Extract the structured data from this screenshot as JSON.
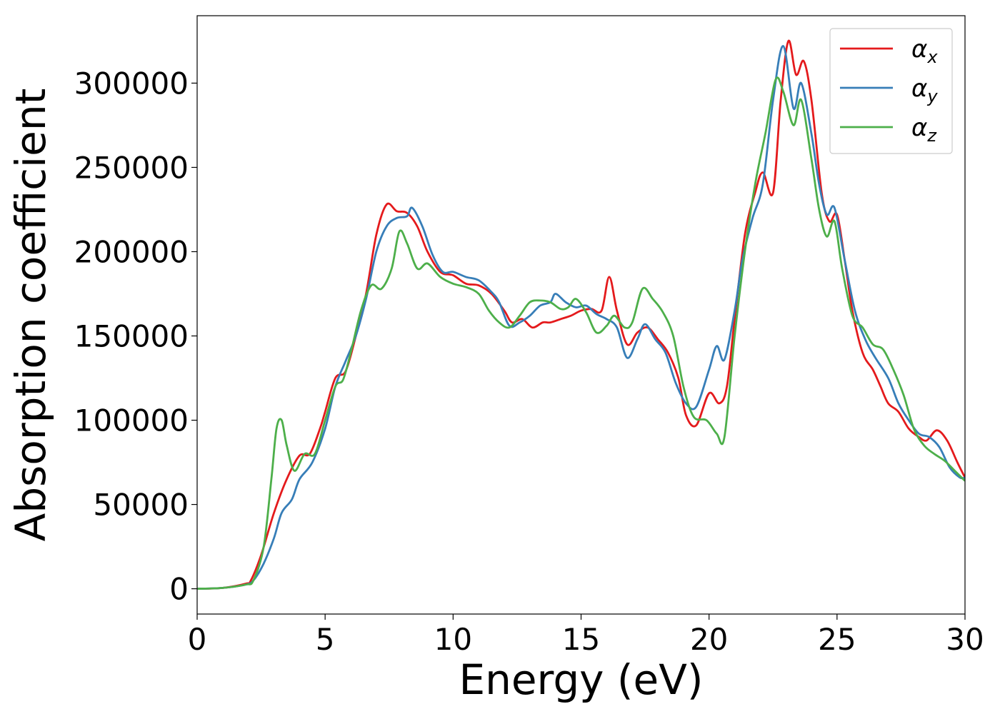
{
  "chart_data": {
    "type": "line",
    "title": "",
    "xlabel": "Energy (eV)",
    "ylabel": "Absorption coefficient",
    "xlim": [
      0,
      30
    ],
    "ylim": [
      -15000,
      340000
    ],
    "xticks": [
      0,
      5,
      10,
      15,
      20,
      25,
      30
    ],
    "yticks": [
      0,
      50000,
      100000,
      150000,
      200000,
      250000,
      300000
    ],
    "xtick_labels": [
      "0",
      "5",
      "10",
      "15",
      "20",
      "25",
      "30"
    ],
    "ytick_labels": [
      "0",
      "50000",
      "100000",
      "150000",
      "200000",
      "250000",
      "300000"
    ],
    "grid": false,
    "legend_position": "top-right",
    "series": [
      {
        "name": "α_x",
        "legend_base": "α",
        "legend_sub": "x",
        "color": "#e41a1c",
        "points": [
          [
            0,
            0
          ],
          [
            1,
            500
          ],
          [
            1.9,
            3000
          ],
          [
            2.1,
            5000
          ],
          [
            2.5,
            20000
          ],
          [
            3,
            45000
          ],
          [
            3.5,
            65000
          ],
          [
            4,
            79000
          ],
          [
            4.4,
            80000
          ],
          [
            4.8,
            95000
          ],
          [
            5,
            105000
          ],
          [
            5.4,
            125000
          ],
          [
            5.8,
            129000
          ],
          [
            6.2,
            150000
          ],
          [
            6.6,
            175000
          ],
          [
            7,
            210000
          ],
          [
            7.4,
            228000
          ],
          [
            7.8,
            224000
          ],
          [
            8.2,
            223000
          ],
          [
            8.6,
            215000
          ],
          [
            9,
            200000
          ],
          [
            9.5,
            188000
          ],
          [
            10,
            186000
          ],
          [
            10.5,
            181000
          ],
          [
            11,
            180000
          ],
          [
            11.5,
            175000
          ],
          [
            12,
            165000
          ],
          [
            12.3,
            158000
          ],
          [
            12.7,
            160000
          ],
          [
            13.1,
            155000
          ],
          [
            13.5,
            158000
          ],
          [
            13.8,
            158000
          ],
          [
            14.2,
            160000
          ],
          [
            14.6,
            162000
          ],
          [
            15,
            165000
          ],
          [
            15.4,
            166000
          ],
          [
            15.8,
            165000
          ],
          [
            16.1,
            185000
          ],
          [
            16.4,
            165000
          ],
          [
            16.8,
            145000
          ],
          [
            17.2,
            152000
          ],
          [
            17.6,
            155000
          ],
          [
            18,
            148000
          ],
          [
            18.4,
            140000
          ],
          [
            18.8,
            125000
          ],
          [
            19.1,
            103000
          ],
          [
            19.5,
            97000
          ],
          [
            20,
            116000
          ],
          [
            20.4,
            110000
          ],
          [
            20.7,
            120000
          ],
          [
            21,
            160000
          ],
          [
            21.4,
            210000
          ],
          [
            21.8,
            235000
          ],
          [
            22.1,
            247000
          ],
          [
            22.5,
            235000
          ],
          [
            22.8,
            290000
          ],
          [
            23.1,
            325000
          ],
          [
            23.4,
            305000
          ],
          [
            23.7,
            313000
          ],
          [
            24,
            290000
          ],
          [
            24.4,
            235000
          ],
          [
            24.7,
            218000
          ],
          [
            25,
            222000
          ],
          [
            25.3,
            195000
          ],
          [
            25.6,
            165000
          ],
          [
            26,
            140000
          ],
          [
            26.4,
            130000
          ],
          [
            26.7,
            120000
          ],
          [
            27,
            110000
          ],
          [
            27.4,
            105000
          ],
          [
            27.8,
            95000
          ],
          [
            28.2,
            90000
          ],
          [
            28.5,
            88000
          ],
          [
            28.9,
            94000
          ],
          [
            29.3,
            88000
          ],
          [
            29.7,
            75000
          ],
          [
            30,
            66000
          ]
        ]
      },
      {
        "name": "α_y",
        "legend_base": "α",
        "legend_sub": "y",
        "color": "#377eb8",
        "points": [
          [
            0,
            0
          ],
          [
            1,
            500
          ],
          [
            1.9,
            2500
          ],
          [
            2.2,
            5000
          ],
          [
            2.6,
            15000
          ],
          [
            3,
            30000
          ],
          [
            3.3,
            45000
          ],
          [
            3.7,
            53000
          ],
          [
            4,
            65000
          ],
          [
            4.5,
            75000
          ],
          [
            5,
            95000
          ],
          [
            5.4,
            120000
          ],
          [
            5.8,
            135000
          ],
          [
            6.2,
            150000
          ],
          [
            6.6,
            172000
          ],
          [
            7,
            200000
          ],
          [
            7.4,
            215000
          ],
          [
            7.8,
            220000
          ],
          [
            8.2,
            221000
          ],
          [
            8.4,
            226000
          ],
          [
            8.8,
            215000
          ],
          [
            9.2,
            198000
          ],
          [
            9.6,
            188000
          ],
          [
            10,
            188000
          ],
          [
            10.5,
            185000
          ],
          [
            11,
            183000
          ],
          [
            11.5,
            176000
          ],
          [
            11.8,
            170000
          ],
          [
            12.2,
            156000
          ],
          [
            12.6,
            158000
          ],
          [
            13,
            162000
          ],
          [
            13.4,
            168000
          ],
          [
            13.8,
            170000
          ],
          [
            14,
            175000
          ],
          [
            14.4,
            170000
          ],
          [
            14.8,
            167000
          ],
          [
            15.2,
            168000
          ],
          [
            15.6,
            163000
          ],
          [
            16,
            160000
          ],
          [
            16.4,
            155000
          ],
          [
            16.8,
            137000
          ],
          [
            17.2,
            148000
          ],
          [
            17.5,
            157000
          ],
          [
            17.9,
            148000
          ],
          [
            18.3,
            140000
          ],
          [
            18.7,
            122000
          ],
          [
            19.1,
            110000
          ],
          [
            19.5,
            108000
          ],
          [
            20,
            130000
          ],
          [
            20.3,
            144000
          ],
          [
            20.6,
            136000
          ],
          [
            21,
            165000
          ],
          [
            21.3,
            195000
          ],
          [
            21.7,
            220000
          ],
          [
            22.1,
            240000
          ],
          [
            22.5,
            290000
          ],
          [
            22.9,
            322000
          ],
          [
            23.3,
            285000
          ],
          [
            23.6,
            300000
          ],
          [
            24,
            270000
          ],
          [
            24.3,
            240000
          ],
          [
            24.6,
            222000
          ],
          [
            24.9,
            226000
          ],
          [
            25.3,
            195000
          ],
          [
            25.7,
            165000
          ],
          [
            26.1,
            148000
          ],
          [
            26.5,
            137000
          ],
          [
            27,
            125000
          ],
          [
            27.4,
            110000
          ],
          [
            27.8,
            100000
          ],
          [
            28.2,
            92000
          ],
          [
            28.6,
            90000
          ],
          [
            29,
            84000
          ],
          [
            29.4,
            72000
          ],
          [
            29.8,
            66000
          ],
          [
            30,
            66000
          ]
        ]
      },
      {
        "name": "α_z",
        "legend_base": "α",
        "legend_sub": "z",
        "color": "#4daf4a",
        "points": [
          [
            0,
            0
          ],
          [
            1,
            500
          ],
          [
            1.9,
            2500
          ],
          [
            2.2,
            5000
          ],
          [
            2.6,
            25000
          ],
          [
            2.9,
            65000
          ],
          [
            3.1,
            95000
          ],
          [
            3.3,
            100000
          ],
          [
            3.5,
            85000
          ],
          [
            3.8,
            70000
          ],
          [
            4.2,
            80000
          ],
          [
            4.6,
            80000
          ],
          [
            5,
            100000
          ],
          [
            5.4,
            120000
          ],
          [
            5.7,
            124000
          ],
          [
            6,
            140000
          ],
          [
            6.4,
            165000
          ],
          [
            6.8,
            180000
          ],
          [
            7.2,
            178000
          ],
          [
            7.6,
            190000
          ],
          [
            7.9,
            212000
          ],
          [
            8.2,
            205000
          ],
          [
            8.6,
            190000
          ],
          [
            9,
            193000
          ],
          [
            9.5,
            185000
          ],
          [
            10,
            181000
          ],
          [
            10.5,
            179000
          ],
          [
            11,
            175000
          ],
          [
            11.4,
            165000
          ],
          [
            11.8,
            158000
          ],
          [
            12.2,
            155000
          ],
          [
            12.6,
            162000
          ],
          [
            13,
            170000
          ],
          [
            13.4,
            171000
          ],
          [
            13.8,
            170000
          ],
          [
            14.2,
            166000
          ],
          [
            14.5,
            167000
          ],
          [
            14.8,
            172000
          ],
          [
            15.2,
            164000
          ],
          [
            15.6,
            152000
          ],
          [
            16,
            156000
          ],
          [
            16.3,
            162000
          ],
          [
            16.7,
            155000
          ],
          [
            17,
            158000
          ],
          [
            17.4,
            178000
          ],
          [
            17.8,
            172000
          ],
          [
            18.2,
            164000
          ],
          [
            18.6,
            150000
          ],
          [
            19,
            120000
          ],
          [
            19.4,
            102000
          ],
          [
            19.9,
            100000
          ],
          [
            20.3,
            92000
          ],
          [
            20.6,
            90000
          ],
          [
            21,
            150000
          ],
          [
            21.4,
            200000
          ],
          [
            21.8,
            240000
          ],
          [
            22.2,
            270000
          ],
          [
            22.6,
            302000
          ],
          [
            22.9,
            295000
          ],
          [
            23.3,
            275000
          ],
          [
            23.6,
            290000
          ],
          [
            24,
            255000
          ],
          [
            24.3,
            225000
          ],
          [
            24.6,
            209000
          ],
          [
            24.9,
            218000
          ],
          [
            25.2,
            190000
          ],
          [
            25.6,
            162000
          ],
          [
            26,
            155000
          ],
          [
            26.4,
            145000
          ],
          [
            26.8,
            142000
          ],
          [
            27.2,
            130000
          ],
          [
            27.6,
            115000
          ],
          [
            28,
            95000
          ],
          [
            28.4,
            85000
          ],
          [
            28.8,
            80000
          ],
          [
            29.2,
            76000
          ],
          [
            29.6,
            70000
          ],
          [
            30,
            64000
          ]
        ]
      }
    ]
  }
}
